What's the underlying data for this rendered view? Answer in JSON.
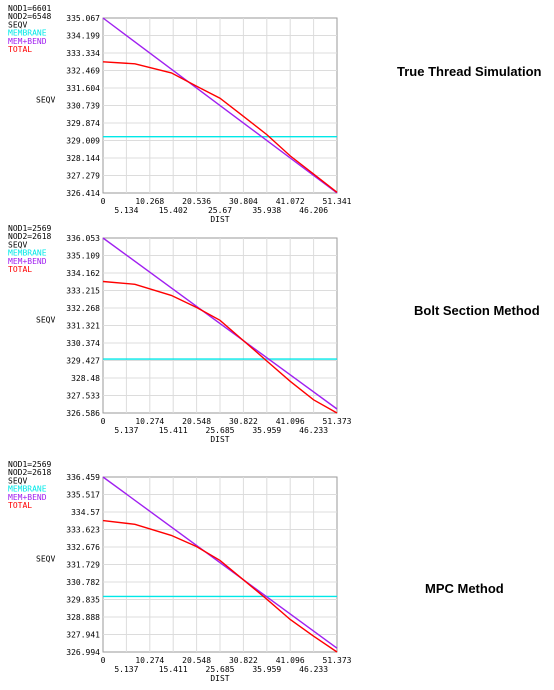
{
  "chart_data": [
    {
      "type": "line",
      "title": "True Thread Simulation",
      "ylabel": "SEQV",
      "xlabel": "DIST",
      "legend_header": [
        "NOD1=6601",
        "NOD2=6548",
        "SEQV"
      ],
      "x_ticks_upper": [
        "0",
        "10.268",
        "20.536",
        "30.804",
        "41.072",
        "51.341"
      ],
      "x_ticks_lower": [
        "5.134",
        "15.402",
        "25.67",
        "35.938",
        "46.206"
      ],
      "y_ticks": [
        "326.414",
        "327.279",
        "328.144",
        "329.009",
        "329.874",
        "330.739",
        "331.604",
        "332.469",
        "333.334",
        "334.199",
        "335.067"
      ],
      "xlim": [
        0,
        51.341
      ],
      "ylim": [
        326.414,
        335.067
      ],
      "series": [
        {
          "name": "MEMBRANE",
          "color": "#00e8e8",
          "x": [
            0,
            51.341
          ],
          "y": [
            329.2,
            329.2
          ]
        },
        {
          "name": "MEM+BEND",
          "color": "#a020f0",
          "x": [
            0,
            51.341
          ],
          "y": [
            335.067,
            326.414
          ]
        },
        {
          "name": "TOTAL",
          "color": "#ff0000",
          "x": [
            0,
            7,
            15,
            20.5,
            25.67,
            30,
            35.938,
            41.072,
            46.206,
            51.341
          ],
          "y": [
            332.9,
            332.8,
            332.35,
            331.7,
            331.1,
            330.35,
            329.3,
            328.25,
            327.35,
            326.45
          ]
        }
      ]
    },
    {
      "type": "line",
      "title": "Bolt Section Method",
      "ylabel": "SEQV",
      "xlabel": "DIST",
      "legend_header": [
        "NOD1=2569",
        "NOD2=2618",
        "SEQV"
      ],
      "x_ticks_upper": [
        "0",
        "10.274",
        "20.548",
        "30.822",
        "41.096",
        "51.373"
      ],
      "x_ticks_lower": [
        "5.137",
        "15.411",
        "25.685",
        "35.959",
        "46.233"
      ],
      "y_ticks": [
        "326.586",
        "327.533",
        "328.48",
        "329.427",
        "330.374",
        "331.321",
        "332.268",
        "333.215",
        "334.162",
        "335.109",
        "336.053"
      ],
      "xlim": [
        0,
        51.373
      ],
      "ylim": [
        326.586,
        336.053
      ],
      "series": [
        {
          "name": "MEMBRANE",
          "color": "#00e8e8",
          "x": [
            0,
            51.373
          ],
          "y": [
            329.5,
            329.5
          ]
        },
        {
          "name": "MEM+BEND",
          "color": "#a020f0",
          "x": [
            0,
            51.373
          ],
          "y": [
            336.053,
            326.8
          ]
        },
        {
          "name": "TOTAL",
          "color": "#ff0000",
          "x": [
            0,
            7,
            15,
            20.5,
            25.685,
            30.822,
            35.959,
            41.096,
            46.233,
            51.373
          ],
          "y": [
            333.7,
            333.55,
            332.95,
            332.3,
            331.6,
            330.5,
            329.4,
            328.3,
            327.3,
            326.586
          ]
        }
      ]
    },
    {
      "type": "line",
      "title": "MPC Method",
      "ylabel": "SEQV",
      "xlabel": "DIST",
      "legend_header": [
        "NOD1=2569",
        "NOD2=2618",
        "SEQV"
      ],
      "x_ticks_upper": [
        "0",
        "10.274",
        "20.548",
        "30.822",
        "41.096",
        "51.373"
      ],
      "x_ticks_lower": [
        "5.137",
        "15.411",
        "25.685",
        "35.959",
        "46.233"
      ],
      "y_ticks": [
        "326.994",
        "327.941",
        "328.888",
        "329.835",
        "330.782",
        "331.729",
        "332.676",
        "333.623",
        "334.57",
        "335.517",
        "336.459"
      ],
      "xlim": [
        0,
        51.373
      ],
      "ylim": [
        326.994,
        336.459
      ],
      "series": [
        {
          "name": "MEMBRANE",
          "color": "#00e8e8",
          "x": [
            0,
            51.373
          ],
          "y": [
            330.0,
            330.0
          ]
        },
        {
          "name": "MEM+BEND",
          "color": "#a020f0",
          "x": [
            0,
            51.373
          ],
          "y": [
            336.459,
            327.2
          ]
        },
        {
          "name": "TOTAL",
          "color": "#ff0000",
          "x": [
            0,
            7,
            15,
            20.5,
            25.685,
            30.822,
            35.959,
            41.096,
            46.233,
            51.373
          ],
          "y": [
            334.1,
            333.9,
            333.3,
            332.7,
            331.95,
            330.9,
            329.85,
            328.75,
            327.85,
            326.994
          ]
        }
      ]
    }
  ]
}
